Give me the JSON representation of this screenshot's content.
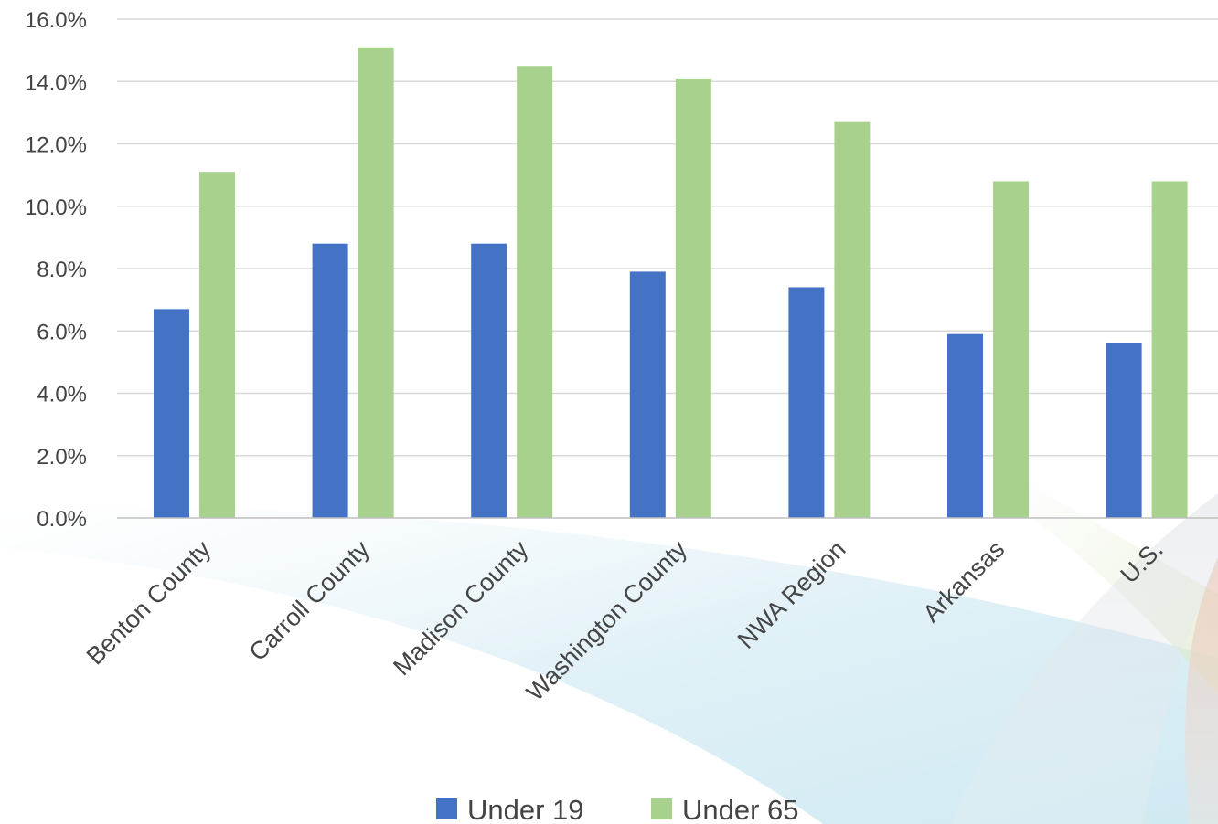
{
  "chart_data": {
    "type": "bar",
    "categories": [
      "Benton County",
      "Carroll County",
      "Madison County",
      "Washington County",
      "NWA Region",
      "Arkansas",
      "U.S."
    ],
    "series": [
      {
        "name": "Under 19",
        "color": "#4472C4",
        "values": [
          6.7,
          8.8,
          8.8,
          7.9,
          7.4,
          5.9,
          5.6
        ]
      },
      {
        "name": "Under 65",
        "color": "#A9D18E",
        "values": [
          11.1,
          15.1,
          14.5,
          14.1,
          12.7,
          10.8,
          10.8
        ]
      }
    ],
    "y_ticks": [
      "0.0%",
      "2.0%",
      "4.0%",
      "6.0%",
      "8.0%",
      "10.0%",
      "12.0%",
      "14.0%",
      "16.0%"
    ],
    "ylim": [
      0,
      16
    ],
    "grid": true,
    "legend_position": "bottom"
  }
}
